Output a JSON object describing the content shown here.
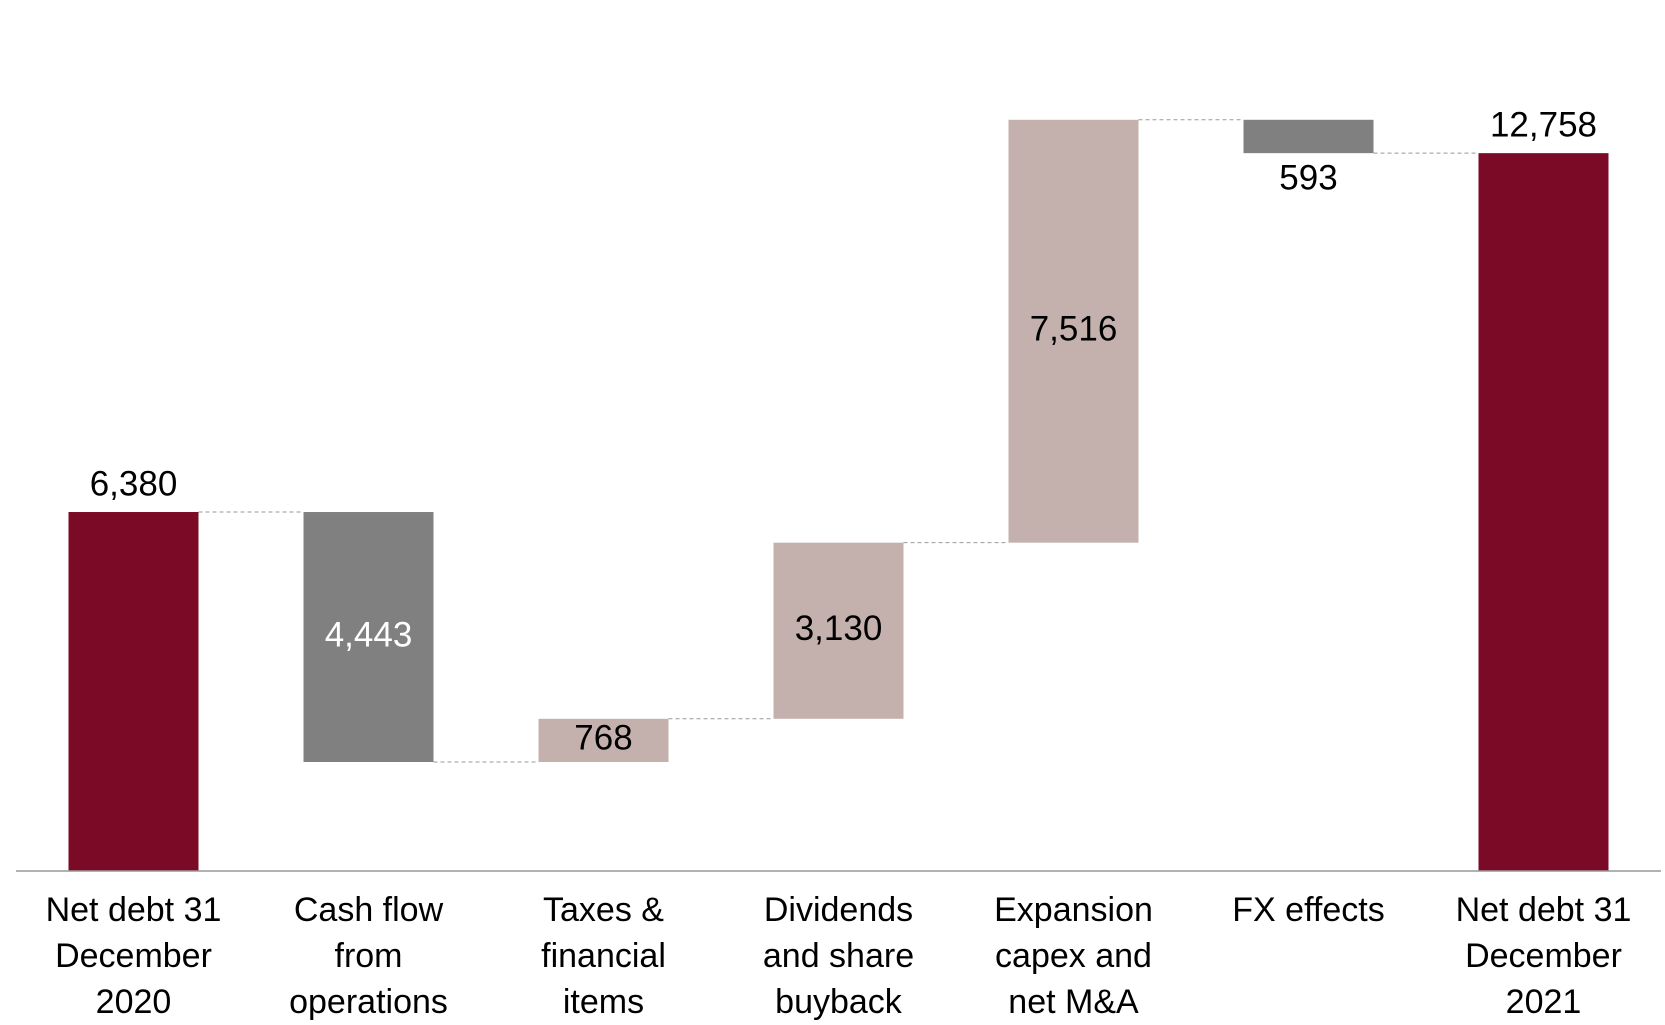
{
  "chart_data": {
    "type": "waterfall",
    "categories": [
      "Net debt 31 December 2020",
      "Cash flow from operations",
      "Taxes & financial items",
      "Dividends and share buyback",
      "Expansion capex and net M&A",
      "FX effects",
      "Net debt 31 December 2021"
    ],
    "measure": [
      "total",
      "relative",
      "relative",
      "relative",
      "relative",
      "relative",
      "total"
    ],
    "values": [
      6380,
      -4443,
      768,
      3130,
      7516,
      -593,
      12758
    ],
    "value_labels": [
      "6,380",
      "4,443",
      "768",
      "3,130",
      "7,516",
      "593",
      "12,758"
    ],
    "colors": {
      "total": "#7b0a26",
      "increase": "#c4b1ae",
      "decrease": "#808080"
    },
    "ylim": [
      0,
      15000
    ]
  }
}
